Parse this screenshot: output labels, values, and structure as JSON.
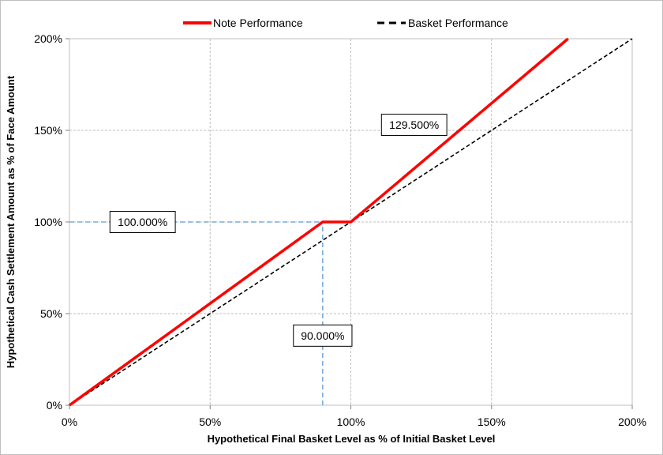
{
  "chart_data": {
    "type": "line",
    "title": "",
    "xlabel": "Hypothetical Final Basket Level as % of Initial Basket Level",
    "ylabel": "Hypothetical Cash Settlement Amount as % of Face Amount",
    "xlim": [
      0,
      200
    ],
    "ylim": [
      0,
      200
    ],
    "x_ticks": [
      "0%",
      "50%",
      "100%",
      "150%",
      "200%"
    ],
    "y_ticks": [
      "0%",
      "50%",
      "100%",
      "150%",
      "200%"
    ],
    "grid": true,
    "legend_position": "top-center",
    "series": [
      {
        "name": "Note Performance",
        "color": "#ff0000",
        "style": "solid",
        "points": [
          [
            0,
            0
          ],
          [
            90,
            100
          ],
          [
            100,
            100
          ],
          [
            177.2,
            200
          ]
        ]
      },
      {
        "name": "Basket Performance",
        "color": "#000000",
        "style": "dashed",
        "points": [
          [
            0,
            0
          ],
          [
            200,
            200
          ]
        ]
      }
    ],
    "reference_lines": {
      "color": "#5b9bd5",
      "horizontal_y": 100,
      "horizontal_x_end": 90,
      "vertical_x": 90,
      "vertical_y_end": 100
    },
    "annotations": [
      {
        "text": "129.500%",
        "x": 122.5,
        "y": 153
      },
      {
        "text": "100.000%",
        "x": 26,
        "y": 100
      },
      {
        "text": "90.000%",
        "x": 90,
        "y": 38
      }
    ]
  }
}
